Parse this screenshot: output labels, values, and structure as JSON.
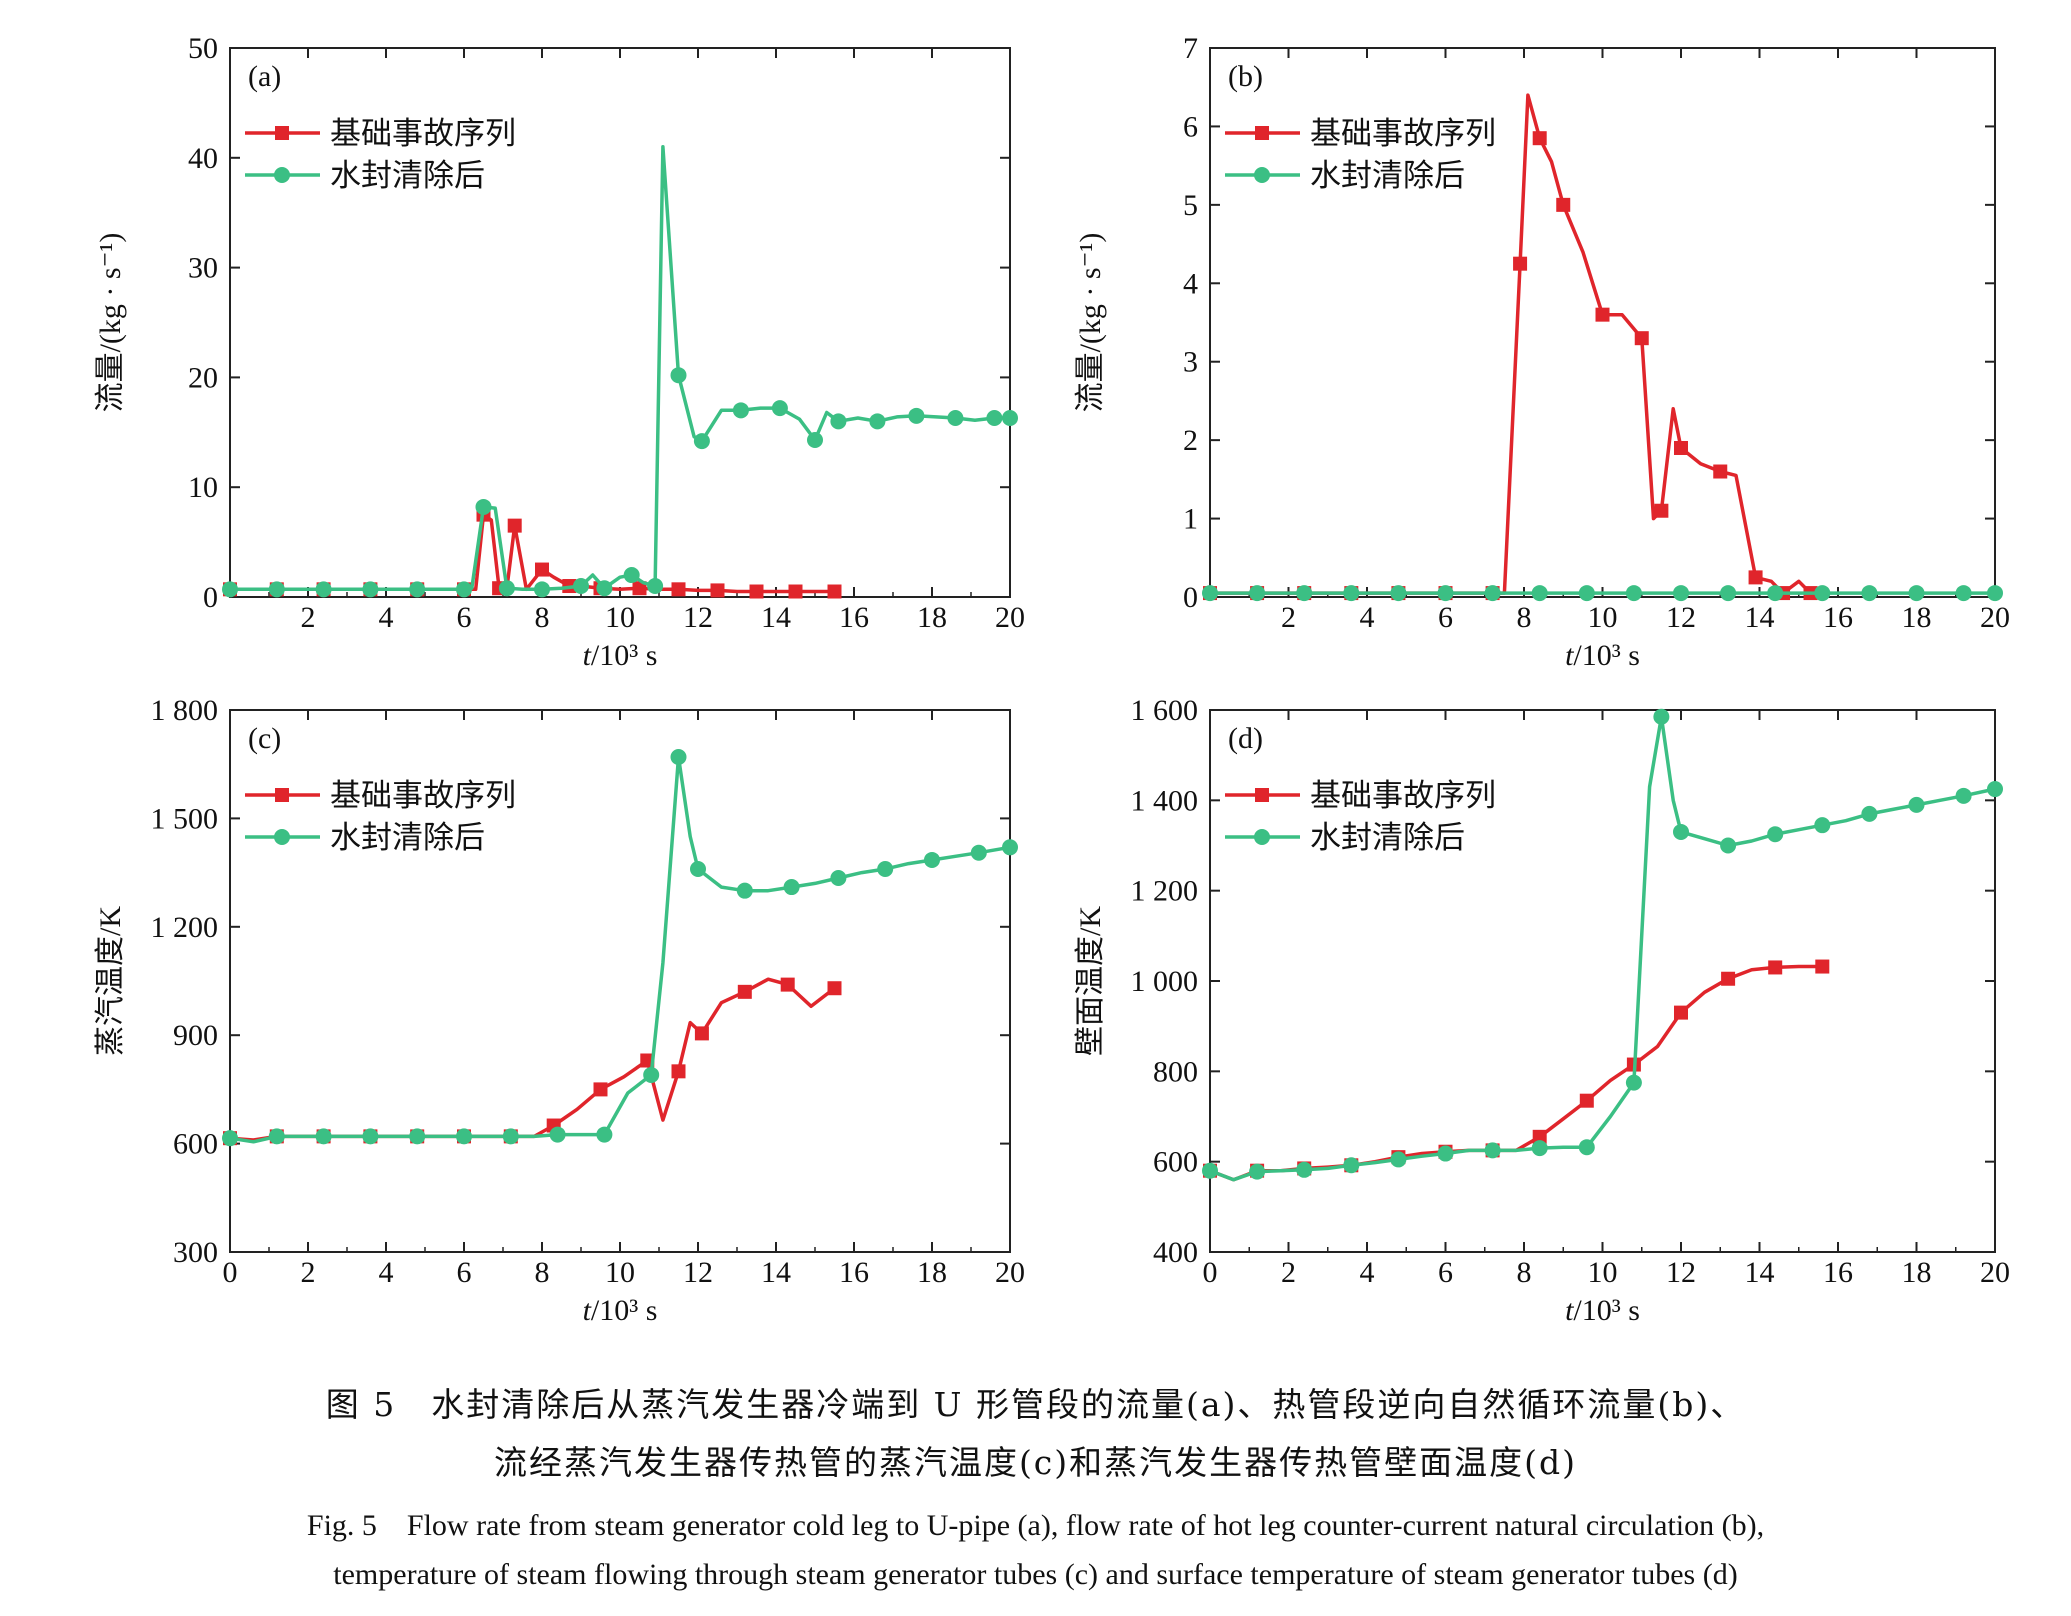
{
  "chart_data": [
    {
      "type": "line",
      "panel_label": "(a)",
      "xlabel_italic": "t",
      "xlabel_rest": "/10³ s",
      "ylabel": "流量/(kg · s⁻¹)",
      "xlim": [
        0,
        20
      ],
      "ylim": [
        0,
        50
      ],
      "xticks": [
        2,
        4,
        6,
        8,
        10,
        12,
        14,
        16,
        18,
        20
      ],
      "yticks": [
        0,
        10,
        20,
        30,
        40,
        50
      ],
      "ytick_labels": [
        "0",
        "10",
        "20",
        "30",
        "40",
        "50"
      ],
      "legend_position": "top-left",
      "series": [
        {
          "name": "基础事故序列",
          "color": "#e0252b",
          "marker": "square",
          "x": [
            0,
            0.6,
            1.2,
            1.8,
            2.4,
            3.0,
            3.6,
            4.2,
            4.8,
            5.4,
            6.0,
            6.3,
            6.5,
            6.7,
            6.9,
            7.1,
            7.3,
            7.6,
            8.0,
            8.3,
            8.7,
            9.0,
            9.5,
            10.0,
            10.5,
            11.0,
            11.5,
            12.0,
            12.5,
            13.0,
            13.5,
            14.0,
            14.5,
            15.0,
            15.5
          ],
          "y": [
            0.7,
            0.7,
            0.7,
            0.7,
            0.7,
            0.7,
            0.7,
            0.7,
            0.7,
            0.7,
            0.7,
            0.7,
            7.5,
            7.0,
            0.8,
            0.8,
            6.5,
            0.7,
            2.5,
            1.8,
            1.0,
            1.0,
            0.8,
            0.7,
            0.8,
            0.7,
            0.7,
            0.6,
            0.6,
            0.5,
            0.5,
            0.5,
            0.5,
            0.5,
            0.5
          ]
        },
        {
          "name": "水封清除后",
          "color": "#3bbf84",
          "marker": "circle",
          "x": [
            0,
            0.6,
            1.2,
            1.8,
            2.4,
            3.0,
            3.6,
            4.2,
            4.8,
            5.4,
            6.0,
            6.2,
            6.5,
            6.8,
            7.1,
            7.5,
            8.0,
            8.5,
            9.0,
            9.3,
            9.6,
            10.0,
            10.3,
            10.6,
            10.9,
            11.1,
            11.5,
            11.9,
            12.1,
            12.6,
            13.1,
            13.6,
            14.1,
            14.6,
            15.0,
            15.3,
            15.6,
            16.1,
            16.6,
            17.1,
            17.6,
            18.1,
            18.6,
            19.1,
            19.6,
            20.0
          ],
          "y": [
            0.7,
            0.7,
            0.7,
            0.7,
            0.7,
            0.7,
            0.7,
            0.7,
            0.7,
            0.7,
            0.7,
            0.8,
            8.2,
            8.1,
            0.8,
            0.7,
            0.7,
            0.8,
            1.0,
            2.0,
            0.8,
            1.8,
            2.0,
            1.3,
            1.0,
            41.0,
            20.2,
            14.6,
            14.2,
            17.0,
            17.0,
            17.2,
            17.2,
            16.2,
            14.3,
            16.8,
            16.0,
            16.3,
            16.0,
            16.4,
            16.5,
            16.4,
            16.3,
            16.1,
            16.3,
            16.3
          ]
        }
      ]
    },
    {
      "type": "line",
      "panel_label": "(b)",
      "xlabel_italic": "t",
      "xlabel_rest": "/10³ s",
      "ylabel": "流量/(kg · s⁻¹)",
      "xlim": [
        0,
        20
      ],
      "ylim": [
        0,
        7
      ],
      "xticks": [
        2,
        4,
        6,
        8,
        10,
        12,
        14,
        16,
        18,
        20
      ],
      "yticks": [
        0,
        1,
        2,
        3,
        4,
        5,
        6,
        7
      ],
      "ytick_labels": [
        "0",
        "1",
        "2",
        "3",
        "4",
        "5",
        "6",
        "7"
      ],
      "legend_position": "top-left",
      "series": [
        {
          "name": "基础事故序列",
          "color": "#e0252b",
          "marker": "square",
          "x": [
            0,
            0.6,
            1.2,
            1.8,
            2.4,
            3.0,
            3.6,
            4.2,
            4.8,
            5.4,
            6.0,
            6.6,
            7.2,
            7.5,
            7.9,
            8.1,
            8.4,
            8.7,
            9.0,
            9.5,
            10.0,
            10.5,
            11.0,
            11.3,
            11.5,
            11.8,
            12.0,
            12.5,
            13.0,
            13.4,
            13.9,
            14.3,
            14.6,
            15.0,
            15.3
          ],
          "y": [
            0.05,
            0.05,
            0.05,
            0.05,
            0.05,
            0.05,
            0.05,
            0.05,
            0.05,
            0.05,
            0.05,
            0.05,
            0.05,
            0.05,
            4.25,
            6.4,
            5.85,
            5.55,
            5.0,
            4.4,
            3.6,
            3.6,
            3.3,
            1.0,
            1.1,
            2.4,
            1.9,
            1.7,
            1.6,
            1.55,
            0.25,
            0.2,
            0.05,
            0.2,
            0.05
          ]
        },
        {
          "name": "水封清除后",
          "color": "#3bbf84",
          "marker": "circle",
          "x": [
            0,
            0.6,
            1.2,
            1.8,
            2.4,
            3.0,
            3.6,
            4.2,
            4.8,
            5.4,
            6.0,
            6.6,
            7.2,
            7.8,
            8.4,
            9.0,
            9.6,
            10.2,
            10.8,
            11.4,
            12.0,
            12.6,
            13.2,
            13.8,
            14.4,
            15.0,
            15.6,
            16.2,
            16.8,
            17.4,
            18.0,
            18.6,
            19.2,
            20.0
          ],
          "y": [
            0.05,
            0.05,
            0.05,
            0.05,
            0.05,
            0.05,
            0.05,
            0.05,
            0.05,
            0.05,
            0.05,
            0.05,
            0.05,
            0.05,
            0.05,
            0.05,
            0.05,
            0.05,
            0.05,
            0.05,
            0.05,
            0.05,
            0.05,
            0.05,
            0.05,
            0.05,
            0.05,
            0.05,
            0.05,
            0.05,
            0.05,
            0.05,
            0.05,
            0.05
          ]
        }
      ]
    },
    {
      "type": "line",
      "panel_label": "(c)",
      "xlabel_italic": "t",
      "xlabel_rest": "/10³ s",
      "ylabel": "蒸汽温度/K",
      "xlim": [
        0,
        20
      ],
      "ylim": [
        300,
        1800
      ],
      "xticks": [
        0,
        2,
        4,
        6,
        8,
        10,
        12,
        14,
        16,
        18,
        20
      ],
      "yticks": [
        300,
        600,
        900,
        1200,
        1500,
        1800
      ],
      "ytick_labels": [
        "300",
        "600",
        "900",
        "1 200",
        "1 500",
        "1 800"
      ],
      "legend_position": "top-left",
      "series": [
        {
          "name": "基础事故序列",
          "color": "#e0252b",
          "marker": "square",
          "x": [
            0,
            0.6,
            1.2,
            1.8,
            2.4,
            3.0,
            3.6,
            4.2,
            4.8,
            5.4,
            6.0,
            6.6,
            7.2,
            7.8,
            8.3,
            8.9,
            9.5,
            10.1,
            10.7,
            11.1,
            11.5,
            11.8,
            12.1,
            12.6,
            13.2,
            13.8,
            14.3,
            14.9,
            15.5
          ],
          "y": [
            615,
            610,
            620,
            620,
            620,
            620,
            620,
            620,
            620,
            620,
            620,
            620,
            620,
            620,
            650,
            695,
            750,
            785,
            830,
            665,
            800,
            935,
            905,
            990,
            1020,
            1055,
            1040,
            980,
            1030
          ]
        },
        {
          "name": "水封清除后",
          "color": "#3bbf84",
          "marker": "circle",
          "x": [
            0,
            0.6,
            1.2,
            1.8,
            2.4,
            3.0,
            3.6,
            4.2,
            4.8,
            5.4,
            6.0,
            6.6,
            7.2,
            7.8,
            8.4,
            9.0,
            9.6,
            10.2,
            10.8,
            11.1,
            11.5,
            11.8,
            12.0,
            12.6,
            13.2,
            13.8,
            14.4,
            15.0,
            15.6,
            16.2,
            16.8,
            17.4,
            18.0,
            18.6,
            19.2,
            20.0
          ],
          "y": [
            615,
            605,
            620,
            620,
            620,
            620,
            620,
            620,
            620,
            620,
            620,
            620,
            620,
            620,
            625,
            625,
            625,
            740,
            790,
            1100,
            1670,
            1450,
            1360,
            1310,
            1300,
            1300,
            1310,
            1320,
            1335,
            1350,
            1360,
            1375,
            1385,
            1395,
            1405,
            1420
          ]
        }
      ]
    },
    {
      "type": "line",
      "panel_label": "(d)",
      "xlabel_italic": "t",
      "xlabel_rest": "/10³ s",
      "ylabel": "壁面温度/K",
      "xlim": [
        0,
        20
      ],
      "ylim": [
        400,
        1600
      ],
      "xticks": [
        0,
        2,
        4,
        6,
        8,
        10,
        12,
        14,
        16,
        18,
        20
      ],
      "yticks": [
        400,
        600,
        800,
        1000,
        1200,
        1400,
        1600
      ],
      "ytick_labels": [
        "400",
        "600",
        "800",
        "1 000",
        "1 200",
        "1 400",
        "1 600"
      ],
      "legend_position": "top-left",
      "series": [
        {
          "name": "基础事故序列",
          "color": "#e0252b",
          "marker": "square",
          "x": [
            0,
            0.6,
            1.2,
            1.8,
            2.4,
            3.0,
            3.6,
            4.2,
            4.8,
            5.4,
            6.0,
            6.6,
            7.2,
            7.8,
            8.4,
            9.0,
            9.6,
            10.2,
            10.8,
            11.4,
            12.0,
            12.6,
            13.2,
            13.8,
            14.4,
            15.0,
            15.6
          ],
          "y": [
            580,
            560,
            580,
            580,
            585,
            588,
            592,
            600,
            610,
            618,
            622,
            625,
            625,
            625,
            655,
            695,
            735,
            780,
            815,
            855,
            930,
            975,
            1005,
            1025,
            1030,
            1032,
            1032
          ]
        },
        {
          "name": "水封清除后",
          "color": "#3bbf84",
          "marker": "circle",
          "x": [
            0,
            0.6,
            1.2,
            1.8,
            2.4,
            3.0,
            3.6,
            4.2,
            4.8,
            5.4,
            6.0,
            6.6,
            7.2,
            7.8,
            8.4,
            9.0,
            9.6,
            10.2,
            10.8,
            11.2,
            11.5,
            11.8,
            12.0,
            12.6,
            13.2,
            13.8,
            14.4,
            15.0,
            15.6,
            16.2,
            16.8,
            17.4,
            18.0,
            18.6,
            19.2,
            20.0
          ],
          "y": [
            580,
            560,
            578,
            580,
            582,
            585,
            592,
            598,
            605,
            612,
            618,
            625,
            625,
            625,
            630,
            632,
            632,
            700,
            775,
            1430,
            1585,
            1400,
            1330,
            1315,
            1300,
            1310,
            1325,
            1335,
            1345,
            1355,
            1370,
            1380,
            1390,
            1400,
            1410,
            1425
          ]
        }
      ]
    }
  ],
  "caption": {
    "cn_line1": "图 5　水封清除后从蒸汽发生器冷端到 U 形管段的流量(a)、热管段逆向自然循环流量(b)、",
    "cn_line2": "流经蒸汽发生器传热管的蒸汽温度(c)和蒸汽发生器传热管壁面温度(d)",
    "en_line1": "Fig. 5　Flow rate from steam generator cold leg to U-pipe (a), flow rate of hot leg counter-current natural circulation (b),",
    "en_line2": "temperature of steam flowing through steam generator tubes (c) and surface temperature of steam generator tubes (d)"
  }
}
